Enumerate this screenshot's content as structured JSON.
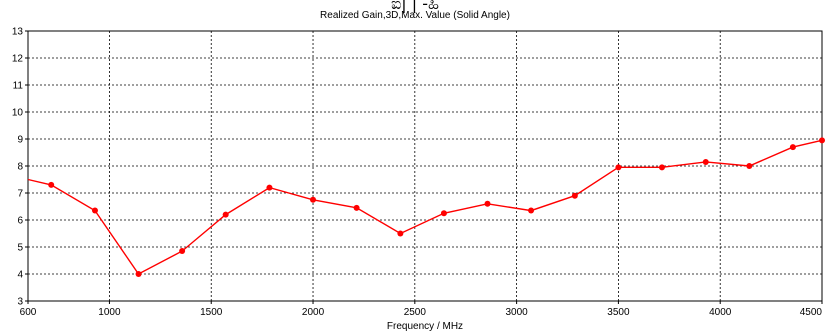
{
  "title_fragment": "ಐ| | -ಹಿ",
  "chart_data": {
    "type": "line",
    "title": "",
    "subtitle": "Realized Gain,3D,Max. Value (Solid Angle)",
    "xlabel": "Frequency / MHz",
    "ylabel": "",
    "xlim": [
      600,
      4500
    ],
    "ylim": [
      3,
      13
    ],
    "xticks": [
      600,
      1000,
      1500,
      2000,
      2500,
      3000,
      3500,
      4000,
      4500
    ],
    "yticks": [
      3,
      4,
      5,
      6,
      7,
      8,
      9,
      10,
      11,
      12,
      13
    ],
    "grid": true,
    "line_color": "#ff0000",
    "series": [
      {
        "x": [
          600,
          714,
          929,
          1143,
          1357,
          1571,
          1786,
          2000,
          2214,
          2429,
          2643,
          2857,
          3071,
          3286,
          3500,
          3714,
          3929,
          4143,
          4357,
          4500
        ],
        "y": [
          7.5,
          7.3,
          6.35,
          4.0,
          4.85,
          6.2,
          7.2,
          6.75,
          6.45,
          5.5,
          6.25,
          6.6,
          6.35,
          6.9,
          7.95,
          7.95,
          8.15,
          8.0,
          8.7,
          8.95
        ]
      }
    ]
  }
}
